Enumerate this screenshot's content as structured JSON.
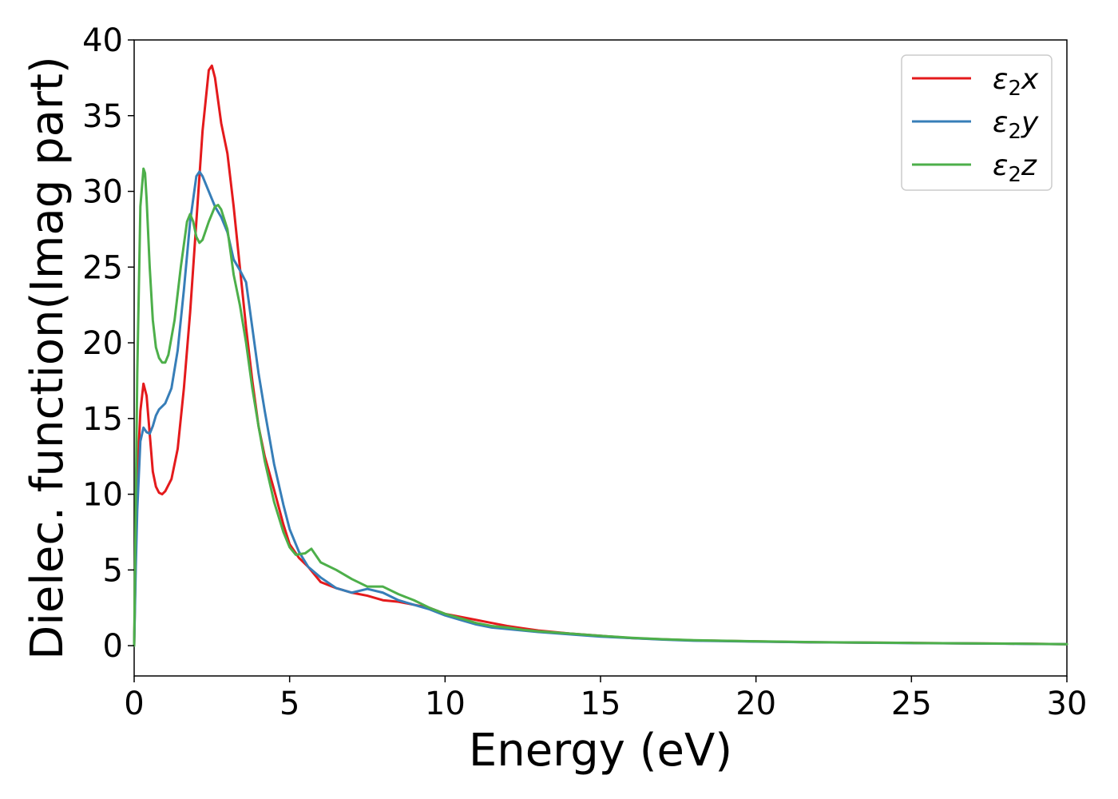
{
  "chart_data": {
    "type": "line",
    "title": "",
    "xlabel": "Energy (eV)",
    "ylabel": "Dielec. function(Imag part)",
    "xlim": [
      0,
      30
    ],
    "ylim": [
      -2,
      40
    ],
    "xticks": [
      0,
      5,
      10,
      15,
      20,
      25,
      30
    ],
    "yticks": [
      0,
      5,
      10,
      15,
      20,
      25,
      30,
      35,
      40
    ],
    "xtick_labels": [
      "0",
      "5",
      "10",
      "15",
      "20",
      "25",
      "30"
    ],
    "ytick_labels": [
      "0",
      "5",
      "10",
      "15",
      "20",
      "25",
      "30",
      "35",
      "40"
    ],
    "grid": false,
    "legend_position": "top-right",
    "series": [
      {
        "name": "ε₂x",
        "legend_base": "ε",
        "legend_sub": "2",
        "legend_var": "x",
        "color": "#e41a1c",
        "points": [
          [
            0,
            0
          ],
          [
            0.05,
            6
          ],
          [
            0.1,
            11
          ],
          [
            0.2,
            15.5
          ],
          [
            0.3,
            17.3
          ],
          [
            0.4,
            16.5
          ],
          [
            0.5,
            14
          ],
          [
            0.6,
            11.5
          ],
          [
            0.7,
            10.5
          ],
          [
            0.8,
            10.1
          ],
          [
            0.9,
            10
          ],
          [
            1.0,
            10.2
          ],
          [
            1.2,
            11
          ],
          [
            1.4,
            13
          ],
          [
            1.6,
            17
          ],
          [
            1.8,
            22
          ],
          [
            2.0,
            28
          ],
          [
            2.2,
            34
          ],
          [
            2.4,
            38
          ],
          [
            2.5,
            38.3
          ],
          [
            2.6,
            37.5
          ],
          [
            2.8,
            34.5
          ],
          [
            3.0,
            32.5
          ],
          [
            3.2,
            29
          ],
          [
            3.4,
            25
          ],
          [
            3.6,
            21
          ],
          [
            3.8,
            17.5
          ],
          [
            4.0,
            14.5
          ],
          [
            4.2,
            12.5
          ],
          [
            4.5,
            10.3
          ],
          [
            4.8,
            8
          ],
          [
            5.0,
            6.7
          ],
          [
            5.3,
            5.8
          ],
          [
            5.6,
            5.2
          ],
          [
            6.0,
            4.2
          ],
          [
            6.5,
            3.8
          ],
          [
            7.0,
            3.5
          ],
          [
            7.5,
            3.3
          ],
          [
            8.0,
            3.0
          ],
          [
            8.5,
            2.9
          ],
          [
            9.0,
            2.7
          ],
          [
            9.5,
            2.5
          ],
          [
            10.0,
            2.1
          ],
          [
            10.5,
            1.9
          ],
          [
            11.0,
            1.7
          ],
          [
            11.5,
            1.5
          ],
          [
            12.0,
            1.3
          ],
          [
            12.5,
            1.15
          ],
          [
            13.0,
            1.0
          ],
          [
            14.0,
            0.8
          ],
          [
            15.0,
            0.65
          ],
          [
            16.0,
            0.5
          ],
          [
            17.0,
            0.42
          ],
          [
            18.0,
            0.35
          ],
          [
            20.0,
            0.28
          ],
          [
            22.0,
            0.22
          ],
          [
            25.0,
            0.18
          ],
          [
            28.0,
            0.14
          ],
          [
            30.0,
            0.1
          ]
        ]
      },
      {
        "name": "ε₂y",
        "legend_base": "ε",
        "legend_sub": "2",
        "legend_var": "y",
        "color": "#377eb8",
        "points": [
          [
            0,
            0
          ],
          [
            0.05,
            5
          ],
          [
            0.1,
            9
          ],
          [
            0.2,
            13.5
          ],
          [
            0.3,
            14.4
          ],
          [
            0.4,
            14.1
          ],
          [
            0.5,
            14.0
          ],
          [
            0.6,
            14.5
          ],
          [
            0.7,
            15.2
          ],
          [
            0.8,
            15.6
          ],
          [
            0.9,
            15.8
          ],
          [
            1.0,
            16.0
          ],
          [
            1.2,
            17
          ],
          [
            1.4,
            19.5
          ],
          [
            1.6,
            23.5
          ],
          [
            1.8,
            28
          ],
          [
            2.0,
            31
          ],
          [
            2.1,
            31.3
          ],
          [
            2.2,
            31
          ],
          [
            2.4,
            30
          ],
          [
            2.6,
            29
          ],
          [
            2.8,
            28.3
          ],
          [
            3.0,
            27.3
          ],
          [
            3.2,
            25.5
          ],
          [
            3.4,
            24.8
          ],
          [
            3.6,
            24
          ],
          [
            3.8,
            21
          ],
          [
            4.0,
            18
          ],
          [
            4.2,
            15.5
          ],
          [
            4.5,
            12
          ],
          [
            4.8,
            9.3
          ],
          [
            5.0,
            7.7
          ],
          [
            5.3,
            6.2
          ],
          [
            5.6,
            5.2
          ],
          [
            6.0,
            4.5
          ],
          [
            6.5,
            3.8
          ],
          [
            7.0,
            3.5
          ],
          [
            7.5,
            3.75
          ],
          [
            8.0,
            3.5
          ],
          [
            8.5,
            3.0
          ],
          [
            9.0,
            2.7
          ],
          [
            9.5,
            2.4
          ],
          [
            10.0,
            2.0
          ],
          [
            10.5,
            1.7
          ],
          [
            11.0,
            1.4
          ],
          [
            11.5,
            1.2
          ],
          [
            12.0,
            1.1
          ],
          [
            12.5,
            1.0
          ],
          [
            13.0,
            0.9
          ],
          [
            14.0,
            0.75
          ],
          [
            15.0,
            0.6
          ],
          [
            16.0,
            0.5
          ],
          [
            17.0,
            0.4
          ],
          [
            18.0,
            0.33
          ],
          [
            20.0,
            0.27
          ],
          [
            22.0,
            0.22
          ],
          [
            25.0,
            0.17
          ],
          [
            28.0,
            0.13
          ],
          [
            30.0,
            0.1
          ]
        ]
      },
      {
        "name": "ε₂z",
        "legend_base": "ε",
        "legend_sub": "2",
        "legend_var": "z",
        "color": "#4daf4a",
        "points": [
          [
            0,
            0
          ],
          [
            0.05,
            9
          ],
          [
            0.1,
            18
          ],
          [
            0.2,
            29
          ],
          [
            0.3,
            31.5
          ],
          [
            0.35,
            31.2
          ],
          [
            0.4,
            29.5
          ],
          [
            0.5,
            25
          ],
          [
            0.6,
            21.5
          ],
          [
            0.7,
            19.7
          ],
          [
            0.8,
            19
          ],
          [
            0.9,
            18.7
          ],
          [
            1.0,
            18.7
          ],
          [
            1.1,
            19.2
          ],
          [
            1.3,
            21.5
          ],
          [
            1.5,
            25
          ],
          [
            1.7,
            28
          ],
          [
            1.8,
            28.5
          ],
          [
            1.9,
            28
          ],
          [
            2.0,
            27
          ],
          [
            2.1,
            26.6
          ],
          [
            2.2,
            26.8
          ],
          [
            2.4,
            28
          ],
          [
            2.6,
            29
          ],
          [
            2.7,
            29.1
          ],
          [
            2.8,
            28.8
          ],
          [
            3.0,
            27.5
          ],
          [
            3.2,
            24.5
          ],
          [
            3.4,
            22.5
          ],
          [
            3.6,
            20
          ],
          [
            3.8,
            17
          ],
          [
            4.0,
            14.5
          ],
          [
            4.2,
            12.2
          ],
          [
            4.5,
            9.5
          ],
          [
            4.8,
            7.5
          ],
          [
            5.0,
            6.5
          ],
          [
            5.2,
            6.0
          ],
          [
            5.5,
            6.1
          ],
          [
            5.7,
            6.4
          ],
          [
            6.0,
            5.5
          ],
          [
            6.5,
            5.0
          ],
          [
            7.0,
            4.4
          ],
          [
            7.5,
            3.9
          ],
          [
            8.0,
            3.9
          ],
          [
            8.5,
            3.4
          ],
          [
            9.0,
            3.0
          ],
          [
            9.5,
            2.5
          ],
          [
            10.0,
            2.1
          ],
          [
            10.5,
            1.8
          ],
          [
            11.0,
            1.5
          ],
          [
            11.5,
            1.3
          ],
          [
            12.0,
            1.2
          ],
          [
            12.5,
            1.05
          ],
          [
            13.0,
            0.95
          ],
          [
            14.0,
            0.8
          ],
          [
            15.0,
            0.65
          ],
          [
            16.0,
            0.52
          ],
          [
            17.0,
            0.43
          ],
          [
            18.0,
            0.36
          ],
          [
            20.0,
            0.29
          ],
          [
            22.0,
            0.23
          ],
          [
            25.0,
            0.18
          ],
          [
            28.0,
            0.14
          ],
          [
            30.0,
            0.1
          ]
        ]
      }
    ]
  }
}
